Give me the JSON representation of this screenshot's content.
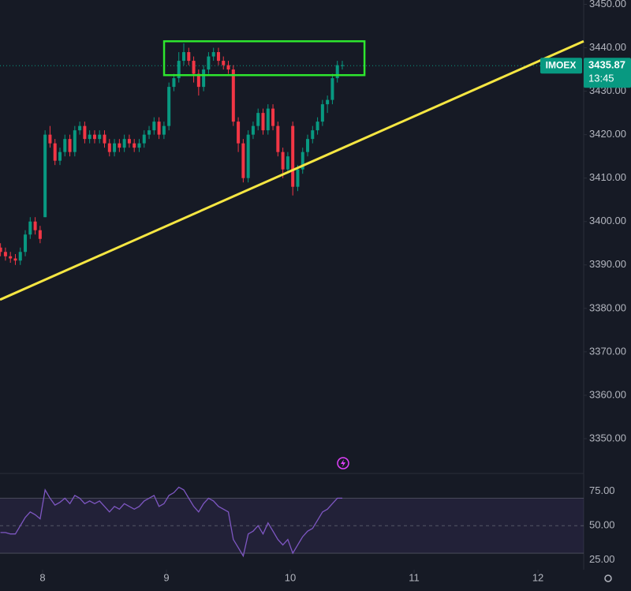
{
  "chart_data": {
    "type": "candlestick",
    "symbol": "IMOEX",
    "last_price": {
      "value": 3435.87,
      "label": "3435.87",
      "time": "13:45"
    },
    "up_color": "#089981",
    "down_color": "#f23645",
    "xlim": [
      7.656,
      12.369
    ],
    "xticks": [
      8,
      9,
      10,
      11,
      12
    ],
    "ylim": [
      3342,
      3451
    ],
    "yticks": [
      {
        "value": 3350,
        "label": "3350.00"
      },
      {
        "value": 3360,
        "label": "3360.00"
      },
      {
        "value": 3370,
        "label": "3370.00"
      },
      {
        "value": 3380,
        "label": "3380.00"
      },
      {
        "value": 3390,
        "label": "3390.00"
      },
      {
        "value": 3400,
        "label": "3400.00"
      },
      {
        "value": 3410,
        "label": "3410.00"
      },
      {
        "value": 3420,
        "label": "3420.00"
      },
      {
        "value": 3430,
        "label": "3430.00"
      },
      {
        "value": 3440,
        "label": "3440.00"
      },
      {
        "value": 3450,
        "label": "3450.00"
      }
    ],
    "x": [
      7.66,
      7.7,
      7.74,
      7.78,
      7.82,
      7.86,
      7.9,
      7.94,
      7.98,
      8.02,
      8.06,
      8.1,
      8.14,
      8.18,
      8.22,
      8.26,
      8.3,
      8.34,
      8.38,
      8.42,
      8.46,
      8.5,
      8.54,
      8.58,
      8.62,
      8.66,
      8.7,
      8.74,
      8.78,
      8.82,
      8.86,
      8.9,
      8.94,
      8.98,
      9.02,
      9.06,
      9.1,
      9.14,
      9.18,
      9.22,
      9.26,
      9.3,
      9.34,
      9.38,
      9.42,
      9.46,
      9.5,
      9.54,
      9.58,
      9.62,
      9.66,
      9.7,
      9.74,
      9.78,
      9.82,
      9.86,
      9.9,
      9.94,
      9.98,
      10.02,
      10.06,
      10.1,
      10.14,
      10.18,
      10.22,
      10.26,
      10.3,
      10.34,
      10.38,
      10.42
    ],
    "open": [
      3394,
      3393,
      3392,
      3391.5,
      3391,
      3393,
      3397,
      3400,
      3398,
      3401,
      3420,
      3418,
      3414,
      3416,
      3419,
      3416,
      3421,
      3422,
      3419,
      3420,
      3419,
      3420,
      3418,
      3416,
      3418,
      3417,
      3419,
      3418,
      3417,
      3418,
      3420,
      3421,
      3423,
      3420,
      3422,
      3431,
      3433,
      3437,
      3439,
      3437,
      3434,
      3431,
      3435,
      3438,
      3439,
      3437,
      3436,
      3435,
      3423,
      3418,
      3410,
      3420,
      3422,
      3425,
      3421,
      3426,
      3422,
      3416,
      3412,
      3422,
      3408,
      3412,
      3416,
      3419,
      3421,
      3423,
      3427,
      3428,
      3433,
      3436
    ],
    "high": [
      3395,
      3394,
      3393,
      3392.5,
      3394,
      3398,
      3401,
      3401,
      3399,
      3421,
      3422,
      3419,
      3417,
      3420,
      3420,
      3422,
      3423,
      3423,
      3421,
      3421,
      3421,
      3421,
      3419,
      3419,
      3419,
      3420,
      3420,
      3419,
      3419,
      3421,
      3422,
      3424,
      3424,
      3423,
      3432,
      3434,
      3439,
      3441,
      3440,
      3438,
      3435,
      3436,
      3439,
      3440,
      3440,
      3438,
      3437,
      3436,
      3424,
      3419,
      3421,
      3423,
      3426,
      3426,
      3427,
      3427,
      3423,
      3417,
      3416,
      3423,
      3413,
      3417,
      3420,
      3422,
      3424,
      3428,
      3429,
      3434,
      3437,
      3437
    ],
    "low": [
      3392,
      3391,
      3390.5,
      3390,
      3390,
      3392,
      3396,
      3397,
      3395,
      3401,
      3417,
      3413,
      3413,
      3415,
      3415,
      3415,
      3420,
      3418,
      3418,
      3418,
      3418,
      3417,
      3415,
      3415,
      3416,
      3416,
      3417,
      3416,
      3416,
      3417,
      3419,
      3420,
      3419,
      3419,
      3421,
      3430,
      3432,
      3436,
      3436,
      3432,
      3429,
      3430,
      3434,
      3437,
      3436,
      3435,
      3434,
      3422,
      3416,
      3409,
      3409,
      3419,
      3421,
      3420,
      3420,
      3421,
      3415,
      3410,
      3411,
      3406,
      3407,
      3411,
      3415,
      3418,
      3420,
      3422,
      3425,
      3427,
      3432,
      3435
    ],
    "close": [
      3393,
      3392,
      3391.5,
      3391,
      3393,
      3397,
      3400,
      3398,
      3396,
      3420,
      3418,
      3414,
      3416,
      3419,
      3416,
      3421,
      3422,
      3419,
      3420,
      3419,
      3420,
      3418,
      3416,
      3418,
      3417,
      3419,
      3418,
      3417,
      3418,
      3420,
      3421,
      3423,
      3420,
      3422,
      3431,
      3433,
      3437,
      3439,
      3437,
      3434,
      3431,
      3435,
      3438,
      3439,
      3437,
      3436,
      3435,
      3423,
      3418,
      3410,
      3420,
      3422,
      3425,
      3421,
      3426,
      3422,
      3416,
      3412,
      3415,
      3408,
      3412,
      3416,
      3419,
      3421,
      3423,
      3427,
      3428,
      3433,
      3436,
      3436
    ],
    "annotations": {
      "trendline": {
        "x": [
          7.656,
          12.369
        ],
        "y": [
          3382,
          3441.5
        ],
        "color": "#f5e642"
      },
      "box": {
        "x": [
          8.981,
          10.599
        ],
        "y": [
          3433.7,
          3441.5
        ],
        "color": "#2ee62e"
      }
    },
    "rsi": {
      "color": "#7e57c2",
      "ylim": [
        18,
        88
      ],
      "yticks": [
        {
          "value": 25,
          "label": "25.00"
        },
        {
          "value": 50,
          "label": "50.00"
        },
        {
          "value": 75,
          "label": "75.00"
        }
      ],
      "band": [
        30,
        70
      ],
      "values": [
        45,
        45,
        44,
        44,
        50,
        56,
        60,
        58,
        55,
        76,
        70,
        65,
        67,
        70,
        66,
        72,
        70,
        66,
        68,
        66,
        68,
        64,
        60,
        64,
        62,
        66,
        64,
        62,
        64,
        68,
        70,
        72,
        64,
        66,
        72,
        74,
        78,
        76,
        70,
        64,
        60,
        66,
        70,
        68,
        64,
        62,
        60,
        40,
        34,
        28,
        44,
        46,
        50,
        44,
        52,
        46,
        40,
        36,
        40,
        30,
        36,
        42,
        46,
        48,
        54,
        60,
        62,
        66,
        70,
        70
      ]
    }
  }
}
